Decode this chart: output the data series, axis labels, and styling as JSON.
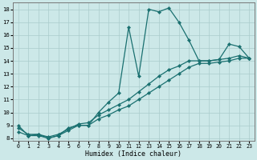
{
  "xlabel": "Humidex (Indice chaleur)",
  "xlim": [
    -0.5,
    23.5
  ],
  "ylim": [
    7.8,
    18.5
  ],
  "xticks": [
    0,
    1,
    2,
    3,
    4,
    5,
    6,
    7,
    8,
    9,
    10,
    11,
    12,
    13,
    14,
    15,
    16,
    17,
    18,
    19,
    20,
    21,
    22,
    23
  ],
  "yticks": [
    8,
    9,
    10,
    11,
    12,
    13,
    14,
    15,
    16,
    17,
    18
  ],
  "bg_color": "#cce8e8",
  "grid_color": "#aacccc",
  "line_color": "#1a7070",
  "line1_x": [
    0,
    1,
    2,
    3,
    4,
    5,
    6,
    7,
    8,
    9,
    10,
    11,
    12,
    13,
    14,
    15,
    16,
    17,
    18,
    19,
    20,
    21,
    22,
    23
  ],
  "line1_y": [
    9.0,
    8.2,
    8.3,
    8.0,
    8.2,
    8.8,
    9.0,
    9.0,
    10.0,
    10.8,
    11.5,
    16.6,
    12.8,
    18.0,
    17.8,
    18.1,
    17.0,
    15.6,
    14.0,
    14.0,
    14.1,
    15.3,
    15.1,
    14.2
  ],
  "line2_x": [
    0,
    1,
    2,
    3,
    4,
    5,
    6,
    7,
    8,
    9,
    10,
    11,
    12,
    13,
    14,
    15,
    16,
    17,
    18,
    19,
    20,
    21,
    22,
    23
  ],
  "line2_y": [
    8.5,
    8.2,
    8.2,
    8.0,
    8.2,
    8.6,
    9.0,
    9.0,
    9.5,
    9.8,
    10.2,
    10.5,
    11.0,
    11.5,
    12.0,
    12.5,
    13.0,
    13.5,
    13.8,
    13.8,
    13.9,
    14.0,
    14.2,
    14.2
  ],
  "line3_x": [
    0,
    1,
    2,
    3,
    4,
    5,
    6,
    7,
    8,
    9,
    10,
    11,
    12,
    13,
    14,
    15,
    16,
    17,
    18,
    19,
    20,
    21,
    22,
    23
  ],
  "line3_y": [
    8.8,
    8.3,
    8.3,
    8.1,
    8.3,
    8.7,
    9.1,
    9.2,
    9.8,
    10.2,
    10.6,
    11.0,
    11.6,
    12.2,
    12.8,
    13.3,
    13.6,
    14.0,
    14.0,
    14.0,
    14.1,
    14.2,
    14.4,
    14.2
  ]
}
